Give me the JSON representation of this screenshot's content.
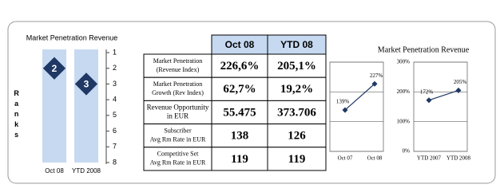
{
  "chart_data": [
    {
      "type": "rank",
      "title": "Market Penetration Revenue",
      "y_label": "Ranks",
      "categories": [
        "Oct 08",
        "YTD 2008"
      ],
      "values": [
        2,
        3
      ],
      "ylim": [
        1,
        8
      ],
      "yticks": [
        1,
        2,
        3,
        4,
        5,
        6,
        7,
        8
      ],
      "color": "#1f3864",
      "column_color": "#c6d9f1"
    },
    {
      "type": "line",
      "title": "Market Penetration Revenue",
      "categories": [
        "Oct 07",
        "Oct 08"
      ],
      "values": [
        139,
        227
      ],
      "value_labels": [
        "139%",
        "227%"
      ],
      "ylim": [
        0,
        300
      ],
      "yticks": [
        0,
        100,
        200,
        300
      ],
      "tick_labels": false,
      "grid": true,
      "color": "#1f3864"
    },
    {
      "type": "line",
      "categories": [
        "YTD 2007",
        "YTD 2008"
      ],
      "values": [
        172,
        205
      ],
      "value_labels": [
        "172%",
        "205%"
      ],
      "ylim": [
        0,
        300
      ],
      "yticks": [
        {
          "value": 0,
          "label": "0%"
        },
        {
          "value": 100,
          "label": "100%"
        },
        {
          "value": 200,
          "label": "200%"
        },
        {
          "value": 300,
          "label": "300%"
        }
      ],
      "tick_labels": true,
      "grid": true,
      "color": "#1f3864"
    }
  ],
  "table": {
    "header": [
      "Oct 08",
      "YTD 08"
    ],
    "rows": [
      {
        "label": [
          "Market Penetration",
          "(Revenue Index)"
        ],
        "cells": [
          "226,6%",
          "205,1%"
        ]
      },
      {
        "label": [
          "Market Penetration",
          "Growth (Rev Index)"
        ],
        "cells": [
          "62,7%",
          "19,2%"
        ]
      },
      {
        "label": [
          "Revenue Opportunity",
          "in EUR"
        ],
        "cells": [
          "55.475",
          "373.706"
        ]
      },
      {
        "label": [
          "Subscriber",
          "Avg Rm Rate in EUR"
        ],
        "cells": [
          "138",
          "126"
        ]
      },
      {
        "label": [
          "Competitive Set",
          "Avg Rm Rate in EUR"
        ],
        "cells": [
          "119",
          "119"
        ]
      }
    ]
  }
}
